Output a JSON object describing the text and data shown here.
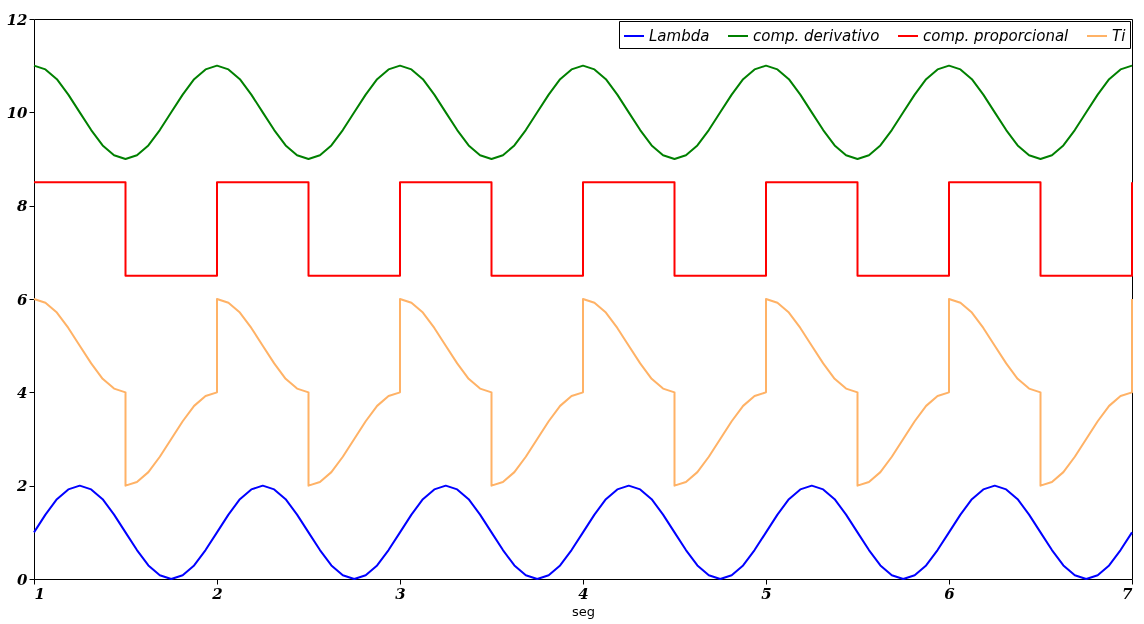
{
  "chart_data": {
    "type": "line",
    "xlabel": "seg",
    "xlim": [
      1,
      7
    ],
    "xticks": [
      1,
      2,
      3,
      4,
      5,
      6,
      7
    ],
    "ylim": [
      0,
      12
    ],
    "yticks": [
      0,
      2,
      4,
      6,
      8,
      10,
      12
    ],
    "grid": false,
    "legend": "top right",
    "x": [
      1,
      1.0625,
      1.125,
      1.1875,
      1.25,
      1.3125,
      1.375,
      1.4375,
      1.5,
      1.5625,
      1.625,
      1.6875,
      1.75,
      1.8125,
      1.875,
      1.9375,
      2,
      2.0625,
      2.125,
      2.1875,
      2.25,
      2.3125,
      2.375,
      2.4375,
      2.5,
      2.5625,
      2.625,
      2.6875,
      2.75,
      2.8125,
      2.875,
      2.9375,
      3,
      3.0625,
      3.125,
      3.1875,
      3.25,
      3.3125,
      3.375,
      3.4375,
      3.5,
      3.5625,
      3.625,
      3.6875,
      3.75,
      3.8125,
      3.875,
      3.9375,
      4,
      4.0625,
      4.125,
      4.1875,
      4.25,
      4.3125,
      4.375,
      4.4375,
      4.5,
      4.5625,
      4.625,
      4.6875,
      4.75,
      4.8125,
      4.875,
      4.9375,
      5,
      5.0625,
      5.125,
      5.1875,
      5.25,
      5.3125,
      5.375,
      5.4375,
      5.5,
      5.5625,
      5.625,
      5.6875,
      5.75,
      5.8125,
      5.875,
      5.9375,
      6,
      6.0625,
      6.125,
      6.1875,
      6.25,
      6.3125,
      6.375,
      6.4375,
      6.5,
      6.5625,
      6.625,
      6.6875,
      6.75,
      6.8125,
      6.875,
      6.9375,
      7
    ],
    "series": [
      {
        "name": "Lambda",
        "color": "#0000ff",
        "values": [
          1,
          1.38,
          1.71,
          1.92,
          2,
          1.92,
          1.71,
          1.38,
          1,
          0.62,
          0.29,
          0.08,
          0,
          0.08,
          0.29,
          0.62,
          1,
          1.38,
          1.71,
          1.92,
          2,
          1.92,
          1.71,
          1.38,
          1,
          0.62,
          0.29,
          0.08,
          0,
          0.08,
          0.29,
          0.62,
          1,
          1.38,
          1.71,
          1.92,
          2,
          1.92,
          1.71,
          1.38,
          1,
          0.62,
          0.29,
          0.08,
          0,
          0.08,
          0.29,
          0.62,
          1,
          1.38,
          1.71,
          1.92,
          2,
          1.92,
          1.71,
          1.38,
          1,
          0.62,
          0.29,
          0.08,
          0,
          0.08,
          0.29,
          0.62,
          1,
          1.38,
          1.71,
          1.92,
          2,
          1.92,
          1.71,
          1.38,
          1,
          0.62,
          0.29,
          0.08,
          0,
          0.08,
          0.29,
          0.62,
          1,
          1.38,
          1.71,
          1.92,
          2,
          1.92,
          1.71,
          1.38,
          1,
          0.62,
          0.29,
          0.08,
          0,
          0.08,
          0.29,
          0.62,
          1
        ]
      },
      {
        "name": "comp. derivativo",
        "color": "#008000",
        "values": [
          11,
          10.92,
          10.71,
          10.38,
          10,
          9.62,
          9.29,
          9.08,
          9,
          9.08,
          9.29,
          9.62,
          10,
          10.38,
          10.71,
          10.92,
          11,
          10.92,
          10.71,
          10.38,
          10,
          9.62,
          9.29,
          9.08,
          9,
          9.08,
          9.29,
          9.62,
          10,
          10.38,
          10.71,
          10.92,
          11,
          10.92,
          10.71,
          10.38,
          10,
          9.62,
          9.29,
          9.08,
          9,
          9.08,
          9.29,
          9.62,
          10,
          10.38,
          10.71,
          10.92,
          11,
          10.92,
          10.71,
          10.38,
          10,
          9.62,
          9.29,
          9.08,
          9,
          9.08,
          9.29,
          9.62,
          10,
          10.38,
          10.71,
          10.92,
          11,
          10.92,
          10.71,
          10.38,
          10,
          9.62,
          9.29,
          9.08,
          9,
          9.08,
          9.29,
          9.62,
          10,
          10.38,
          10.71,
          10.92,
          11,
          10.92,
          10.71,
          10.38,
          10,
          9.62,
          9.29,
          9.08,
          9,
          9.08,
          9.29,
          9.62,
          10,
          10.38,
          10.71,
          10.92,
          11
        ]
      },
      {
        "name": "comp. proporcional",
        "color": "#ff0000",
        "x": [
          1,
          1.5,
          1.5,
          2,
          2,
          2.5,
          2.5,
          3,
          3,
          3.5,
          3.5,
          4,
          4,
          4.5,
          4.5,
          5,
          5,
          5.5,
          5.5,
          6,
          6,
          6.5,
          6.5,
          7,
          7
        ],
        "values": [
          8.5,
          8.5,
          6.5,
          6.5,
          8.5,
          8.5,
          6.5,
          6.5,
          8.5,
          8.5,
          6.5,
          6.5,
          8.5,
          8.5,
          6.5,
          6.5,
          8.5,
          8.5,
          6.5,
          6.5,
          8.5,
          8.5,
          6.5,
          6.5,
          8.5
        ]
      },
      {
        "name": "Ti",
        "color": "#ffb266",
        "x": [
          1,
          1.0625,
          1.125,
          1.1875,
          1.25,
          1.3125,
          1.375,
          1.4375,
          1.5,
          1.5,
          1.5625,
          1.625,
          1.6875,
          1.75,
          1.8125,
          1.875,
          1.9375,
          2,
          2,
          2.0625,
          2.125,
          2.1875,
          2.25,
          2.3125,
          2.375,
          2.4375,
          2.5,
          2.5,
          2.5625,
          2.625,
          2.6875,
          2.75,
          2.8125,
          2.875,
          2.9375,
          3,
          3,
          3.0625,
          3.125,
          3.1875,
          3.25,
          3.3125,
          3.375,
          3.4375,
          3.5,
          3.5,
          3.5625,
          3.625,
          3.6875,
          3.75,
          3.8125,
          3.875,
          3.9375,
          4,
          4,
          4.0625,
          4.125,
          4.1875,
          4.25,
          4.3125,
          4.375,
          4.4375,
          4.5,
          4.5,
          4.5625,
          4.625,
          4.6875,
          4.75,
          4.8125,
          4.875,
          4.9375,
          5,
          5,
          5.0625,
          5.125,
          5.1875,
          5.25,
          5.3125,
          5.375,
          5.4375,
          5.5,
          5.5,
          5.5625,
          5.625,
          5.6875,
          5.75,
          5.8125,
          5.875,
          5.9375,
          6,
          6,
          6.0625,
          6.125,
          6.1875,
          6.25,
          6.3125,
          6.375,
          6.4375,
          6.5,
          6.5,
          6.5625,
          6.625,
          6.6875,
          6.75,
          6.8125,
          6.875,
          6.9375,
          7,
          7
        ],
        "values": [
          6,
          5.92,
          5.71,
          5.38,
          5,
          4.62,
          4.29,
          4.08,
          4,
          2,
          2.08,
          2.29,
          2.62,
          3,
          3.38,
          3.71,
          3.92,
          4,
          6,
          5.92,
          5.71,
          5.38,
          5,
          4.62,
          4.29,
          4.08,
          4,
          2,
          2.08,
          2.29,
          2.62,
          3,
          3.38,
          3.71,
          3.92,
          4,
          6,
          5.92,
          5.71,
          5.38,
          5,
          4.62,
          4.29,
          4.08,
          4,
          2,
          2.08,
          2.29,
          2.62,
          3,
          3.38,
          3.71,
          3.92,
          4,
          6,
          5.92,
          5.71,
          5.38,
          5,
          4.62,
          4.29,
          4.08,
          4,
          2,
          2.08,
          2.29,
          2.62,
          3,
          3.38,
          3.71,
          3.92,
          4,
          6,
          5.92,
          5.71,
          5.38,
          5,
          4.62,
          4.29,
          4.08,
          4,
          2,
          2.08,
          2.29,
          2.62,
          3,
          3.38,
          3.71,
          3.92,
          4,
          6,
          5.92,
          5.71,
          5.38,
          5,
          4.62,
          4.29,
          4.08,
          4,
          2,
          2.08,
          2.29,
          2.62,
          3,
          3.38,
          3.71,
          3.92,
          4,
          6
        ]
      }
    ]
  }
}
